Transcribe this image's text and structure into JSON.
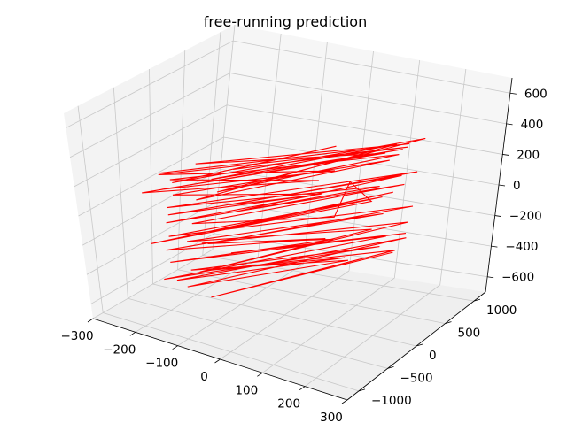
{
  "chart_data": {
    "type": "line",
    "projection": "3d",
    "title": "free-running prediction",
    "xlabel": "",
    "ylabel": "",
    "zlabel": "",
    "xlim": [
      -300,
      300
    ],
    "ylim": [
      -1200,
      1200
    ],
    "zlim": [
      -700,
      700
    ],
    "x_ticks": [
      -300,
      -200,
      -100,
      0,
      100,
      200,
      300
    ],
    "y_ticks": [
      -1000,
      -500,
      0,
      500,
      1000
    ],
    "z_ticks": [
      -600,
      -400,
      -200,
      0,
      200,
      400,
      600
    ],
    "grid": true,
    "pane_color": "#ebebeb",
    "grid_color": "#c8c8c8",
    "series": [
      {
        "color": "#ff0000",
        "x": [
          -180,
          150,
          -160,
          140,
          -150,
          60,
          -170,
          160,
          -120,
          20,
          -170,
          170,
          -100,
          130,
          -160,
          40,
          -180,
          150,
          -140,
          110,
          -90,
          150,
          -170,
          60,
          -140,
          140,
          -60,
          120,
          -170,
          160,
          -100,
          20,
          -160,
          160,
          -130,
          90,
          30,
          130,
          -170,
          150,
          -120,
          90,
          -170,
          170,
          -110,
          60,
          -150,
          120,
          -170,
          110,
          -90,
          150,
          -150,
          40,
          -170,
          160,
          -110,
          130,
          -160,
          130,
          -150,
          100,
          -120,
          150,
          -170,
          80,
          -140,
          140,
          -80,
          160
        ],
        "y": [
          -700,
          800,
          -300,
          500,
          -900,
          300,
          -800,
          700,
          0,
          600,
          -600,
          900,
          -400,
          800,
          -700,
          200,
          -1000,
          700,
          -200,
          900,
          -800,
          500,
          -600,
          100,
          -900,
          800,
          -400,
          600,
          -700,
          900,
          -200,
          300,
          -800,
          700,
          -600,
          100,
          800,
          400,
          -1000,
          600,
          -300,
          900,
          -700,
          800,
          -500,
          200,
          -900,
          700,
          -400,
          600,
          -800,
          900,
          -300,
          500,
          -700,
          800,
          -100,
          700,
          -900,
          600,
          -500,
          300,
          -800,
          900,
          -600,
          400,
          -300,
          800,
          -700,
          600
        ],
        "z": [
          260,
          290,
          240,
          300,
          220,
          190,
          280,
          300,
          160,
          250,
          180,
          310,
          120,
          210,
          230,
          140,
          200,
          280,
          130,
          240,
          170,
          260,
          100,
          90,
          60,
          80,
          20,
          50,
          40,
          90,
          -10,
          10,
          -30,
          60,
          -60,
          -40,
          -20,
          10,
          -130,
          30,
          -170,
          -110,
          -150,
          -100,
          -200,
          -220,
          -180,
          -150,
          -250,
          -230,
          -300,
          -240,
          -270,
          -310,
          -320,
          -280,
          -350,
          -290,
          -380,
          -330,
          -400,
          -360,
          -420,
          -340,
          -460,
          -380,
          -440,
          -400,
          -480,
          -350
        ]
      }
    ]
  }
}
